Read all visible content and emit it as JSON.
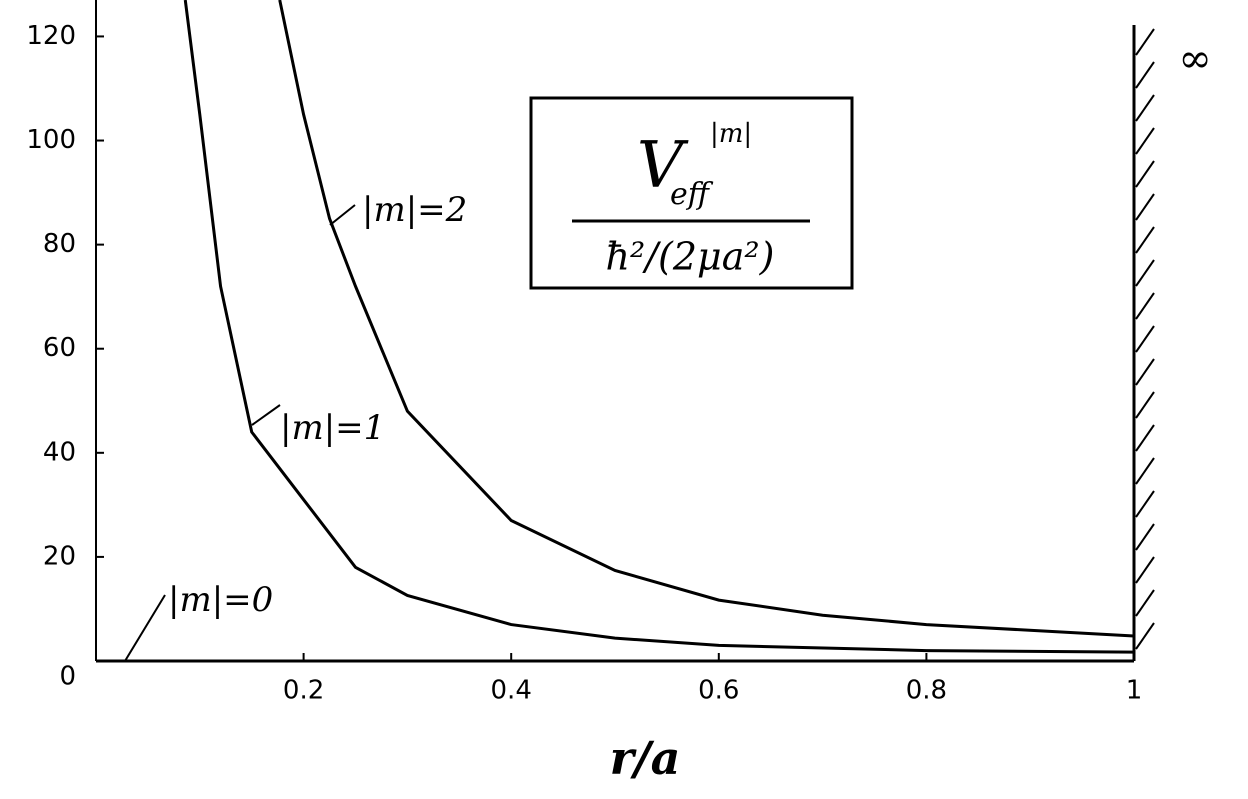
{
  "chart_data": {
    "type": "line",
    "x_label": "r/a",
    "box_label": {
      "numerator": "V",
      "subscript": "eff",
      "superscript": "|m|",
      "denominator": "ħ²/(2μa²)"
    },
    "annotations": {
      "zero_curve": "|m|=0",
      "wall": "∞"
    },
    "series": [
      {
        "name": "|m|=1",
        "color": "#000000",
        "x": [
          0.086,
          0.1,
          0.12,
          0.15,
          0.2,
          0.25,
          0.3,
          0.4,
          0.5,
          0.6,
          0.8,
          1.0
        ],
        "values": [
          127,
          105,
          72,
          44,
          31,
          18,
          12.6,
          7,
          4.4,
          3,
          2,
          1.7
        ]
      },
      {
        "name": "|m|=2",
        "color": "#000000",
        "x": [
          0.177,
          0.2,
          0.225,
          0.25,
          0.3,
          0.4,
          0.5,
          0.6,
          0.7,
          0.8,
          1.0
        ],
        "values": [
          127,
          105,
          85,
          72,
          48,
          27,
          17.4,
          11.7,
          8.8,
          7,
          4.8
        ]
      }
    ],
    "xlim": [
      0,
      1
    ],
    "ylim": [
      0,
      127
    ],
    "xticks": [
      0.2,
      0.4,
      0.6,
      0.8,
      1
    ],
    "yticks": [
      0,
      20,
      40,
      60,
      80,
      100,
      120
    ],
    "wall_x": 1
  }
}
